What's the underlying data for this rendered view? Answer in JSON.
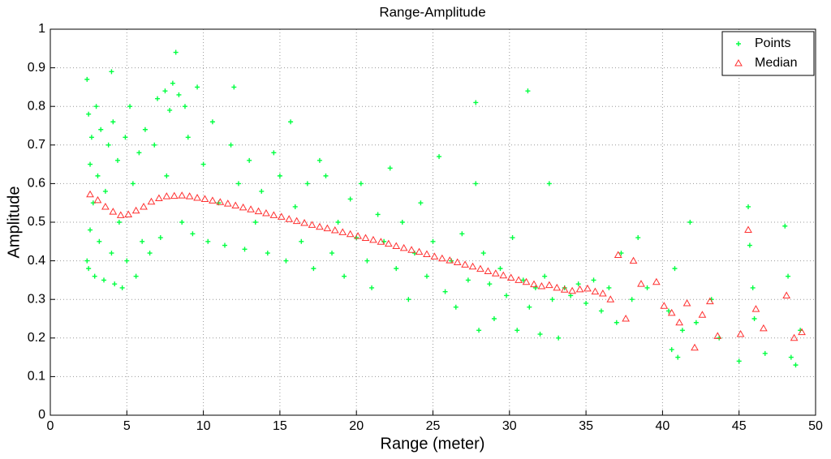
{
  "chart_data": {
    "type": "scatter",
    "title": "Range-Amplitude",
    "xlabel": "Range (meter)",
    "ylabel": "Amplitude",
    "xlim": [
      0,
      50
    ],
    "xticks": [
      0,
      5,
      10,
      15,
      20,
      25,
      30,
      35,
      40,
      45,
      50
    ],
    "ylim": [
      0,
      1
    ],
    "yticks": [
      0,
      0.1,
      0.2,
      0.3,
      0.4,
      0.5,
      0.6,
      0.7,
      0.8,
      0.9,
      1
    ],
    "grid": true,
    "legend": "upper right",
    "series": [
      {
        "name": "Points",
        "color": "#00ff40",
        "marker": "plus",
        "x": [
          2.4,
          2.4,
          2.5,
          2.5,
          2.6,
          2.6,
          2.7,
          2.8,
          2.9,
          3.0,
          3.1,
          3.2,
          3.3,
          3.5,
          3.6,
          3.8,
          4.0,
          4.0,
          4.1,
          4.2,
          4.4,
          4.5,
          4.7,
          4.9,
          5.0,
          5.2,
          5.4,
          5.6,
          5.8,
          6.0,
          6.2,
          6.5,
          6.8,
          7.0,
          7.2,
          7.5,
          7.6,
          7.8,
          8.0,
          8.2,
          8.4,
          8.6,
          8.8,
          9.0,
          9.3,
          9.6,
          10.0,
          10.3,
          10.6,
          11.0,
          11.4,
          11.8,
          12.0,
          12.3,
          12.7,
          13.0,
          13.4,
          13.8,
          14.2,
          14.6,
          15.0,
          15.4,
          15.7,
          16.0,
          16.4,
          16.8,
          17.2,
          17.6,
          18.0,
          18.4,
          18.8,
          19.2,
          19.6,
          20.0,
          20.3,
          20.7,
          21.0,
          21.4,
          21.8,
          22.2,
          22.6,
          23.0,
          23.4,
          23.8,
          24.2,
          24.6,
          25.0,
          25.4,
          25.8,
          26.2,
          26.5,
          26.9,
          27.3,
          27.8,
          27.8,
          28.0,
          28.3,
          28.7,
          29.0,
          29.4,
          29.8,
          30.2,
          30.5,
          30.9,
          31.2,
          31.3,
          31.7,
          32.0,
          32.3,
          32.6,
          32.8,
          33.2,
          33.6,
          34.0,
          34.5,
          35.0,
          35.5,
          36.0,
          36.5,
          37.0,
          37.3,
          38.0,
          38.4,
          39.0,
          40.4,
          40.6,
          40.8,
          41.0,
          41.3,
          41.8,
          42.2,
          43.2,
          43.7,
          45.0,
          45.6,
          45.7,
          45.9,
          46.0,
          46.7,
          48.0,
          48.2,
          48.4,
          48.7,
          49.0
        ],
        "values": [
          0.87,
          0.4,
          0.78,
          0.38,
          0.65,
          0.48,
          0.72,
          0.55,
          0.36,
          0.8,
          0.62,
          0.45,
          0.74,
          0.35,
          0.58,
          0.7,
          0.89,
          0.42,
          0.76,
          0.34,
          0.66,
          0.5,
          0.33,
          0.72,
          0.4,
          0.8,
          0.6,
          0.36,
          0.68,
          0.45,
          0.74,
          0.42,
          0.7,
          0.82,
          0.46,
          0.84,
          0.62,
          0.79,
          0.86,
          0.94,
          0.83,
          0.5,
          0.8,
          0.72,
          0.47,
          0.85,
          0.65,
          0.45,
          0.76,
          0.55,
          0.44,
          0.7,
          0.85,
          0.6,
          0.43,
          0.66,
          0.5,
          0.58,
          0.42,
          0.68,
          0.62,
          0.4,
          0.76,
          0.54,
          0.45,
          0.6,
          0.38,
          0.66,
          0.62,
          0.42,
          0.5,
          0.36,
          0.56,
          0.46,
          0.6,
          0.4,
          0.33,
          0.52,
          0.45,
          0.64,
          0.38,
          0.5,
          0.3,
          0.42,
          0.55,
          0.36,
          0.45,
          0.67,
          0.32,
          0.4,
          0.28,
          0.47,
          0.35,
          0.81,
          0.6,
          0.22,
          0.42,
          0.34,
          0.25,
          0.38,
          0.31,
          0.46,
          0.22,
          0.35,
          0.84,
          0.28,
          0.33,
          0.21,
          0.36,
          0.6,
          0.3,
          0.2,
          0.33,
          0.31,
          0.34,
          0.29,
          0.35,
          0.27,
          0.33,
          0.24,
          0.42,
          0.3,
          0.46,
          0.33,
          0.27,
          0.17,
          0.38,
          0.15,
          0.22,
          0.5,
          0.24,
          0.3,
          0.2,
          0.14,
          0.54,
          0.44,
          0.33,
          0.25,
          0.16,
          0.49,
          0.36,
          0.15,
          0.13,
          0.22
        ]
      },
      {
        "name": "Median",
        "color": "#ff3030",
        "marker": "triangle",
        "x": [
          2.6,
          3.1,
          3.6,
          4.1,
          4.6,
          5.1,
          5.6,
          6.1,
          6.6,
          7.1,
          7.6,
          8.1,
          8.6,
          9.1,
          9.6,
          10.1,
          10.6,
          11.1,
          11.6,
          12.1,
          12.6,
          13.1,
          13.6,
          14.1,
          14.6,
          15.1,
          15.6,
          16.1,
          16.6,
          17.1,
          17.6,
          18.1,
          18.6,
          19.1,
          19.6,
          20.1,
          20.6,
          21.1,
          21.6,
          22.1,
          22.6,
          23.1,
          23.6,
          24.1,
          24.6,
          25.1,
          25.6,
          26.1,
          26.6,
          27.1,
          27.6,
          28.1,
          28.6,
          29.1,
          29.6,
          30.1,
          30.6,
          31.1,
          31.6,
          32.1,
          32.6,
          33.1,
          33.6,
          34.1,
          34.6,
          35.1,
          35.6,
          36.1,
          36.6,
          37.1,
          37.6,
          38.1,
          38.6,
          39.6,
          40.1,
          40.6,
          41.1,
          41.6,
          42.1,
          42.6,
          43.1,
          43.6,
          45.1,
          45.6,
          46.1,
          46.6,
          48.1,
          48.6,
          49.1
        ],
        "values": [
          0.572,
          0.557,
          0.54,
          0.527,
          0.518,
          0.52,
          0.53,
          0.54,
          0.553,
          0.562,
          0.567,
          0.568,
          0.569,
          0.567,
          0.563,
          0.56,
          0.556,
          0.552,
          0.548,
          0.543,
          0.538,
          0.533,
          0.528,
          0.523,
          0.518,
          0.514,
          0.508,
          0.503,
          0.498,
          0.493,
          0.488,
          0.484,
          0.479,
          0.474,
          0.469,
          0.464,
          0.459,
          0.454,
          0.449,
          0.444,
          0.438,
          0.433,
          0.428,
          0.423,
          0.417,
          0.411,
          0.406,
          0.401,
          0.396,
          0.39,
          0.385,
          0.379,
          0.373,
          0.367,
          0.362,
          0.356,
          0.35,
          0.345,
          0.339,
          0.334,
          0.337,
          0.33,
          0.325,
          0.322,
          0.326,
          0.328,
          0.32,
          0.315,
          0.3,
          0.415,
          0.25,
          0.4,
          0.34,
          0.345,
          0.283,
          0.265,
          0.24,
          0.29,
          0.175,
          0.26,
          0.295,
          0.205,
          0.21,
          0.48,
          0.275,
          0.225,
          0.31,
          0.2,
          0.215
        ]
      }
    ]
  }
}
